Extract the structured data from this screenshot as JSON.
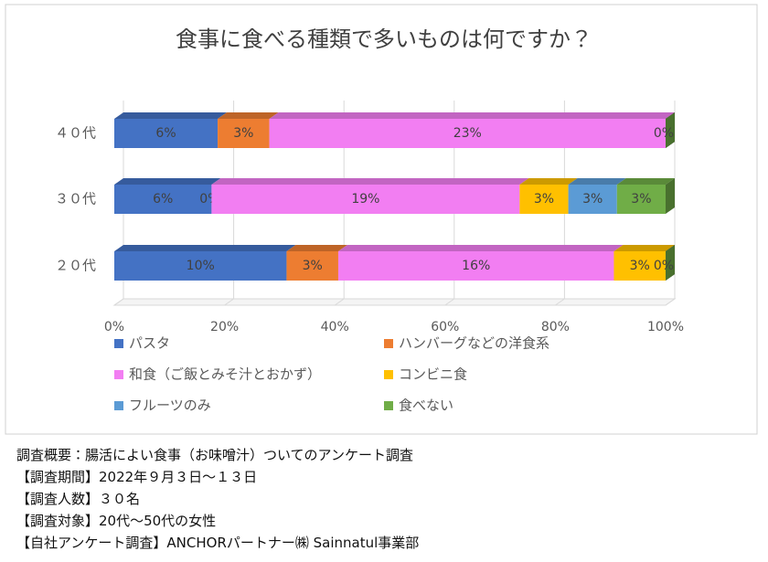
{
  "chart_data": {
    "type": "stacked-bar-100",
    "title": "食事に食べる種類で多いものは何ですか？",
    "categories": [
      "４０代",
      "３０代",
      "２０代"
    ],
    "series": [
      {
        "name": "パスタ",
        "color": "#4472c4",
        "values": [
          6,
          6,
          10
        ],
        "value_labels": [
          "6%",
          "6%",
          "10%"
        ]
      },
      {
        "name": "ハンバーグなどの洋食系",
        "color": "#ed7d31",
        "values": [
          3,
          0,
          3
        ],
        "value_labels": [
          "3%",
          "0%",
          "3%"
        ]
      },
      {
        "name": "和食（ご飯とみそ汁とおかず）",
        "color": "#f27ef2",
        "values": [
          23,
          19,
          16
        ],
        "value_labels": [
          "23%",
          "19%",
          "16%"
        ]
      },
      {
        "name": "コンビニ食",
        "color": "#ffc000",
        "values": [
          0,
          3,
          3
        ],
        "value_labels": [
          null,
          "3%",
          "3%"
        ]
      },
      {
        "name": "フルーツのみ",
        "color": "#5b9bd5",
        "values": [
          0,
          3,
          0
        ],
        "value_labels": [
          null,
          "3%",
          null
        ]
      },
      {
        "name": "食べない",
        "color": "#70ad47",
        "values": [
          0,
          3,
          0
        ],
        "value_labels": [
          "0%",
          "3%",
          "0%"
        ]
      }
    ],
    "xlim": [
      0,
      100
    ],
    "xticks": [
      {
        "value": 0,
        "label": "0%"
      },
      {
        "value": 20,
        "label": "20%"
      },
      {
        "value": 40,
        "label": "40%"
      },
      {
        "value": 60,
        "label": "60%"
      },
      {
        "value": 80,
        "label": "80%"
      },
      {
        "value": 100,
        "label": "100%"
      }
    ],
    "grid": true
  },
  "notes": [
    "調査概要：腸活によい食事（お味噌汁）ついてのアンケート調査",
    "【調査期間】2022年９月３日～１３日",
    "【調査人数】３０名",
    "【調査対象】20代～50代の女性",
    "【自社アンケート調査】ANCHORパートナー㈱ Sainnatul事業部"
  ]
}
